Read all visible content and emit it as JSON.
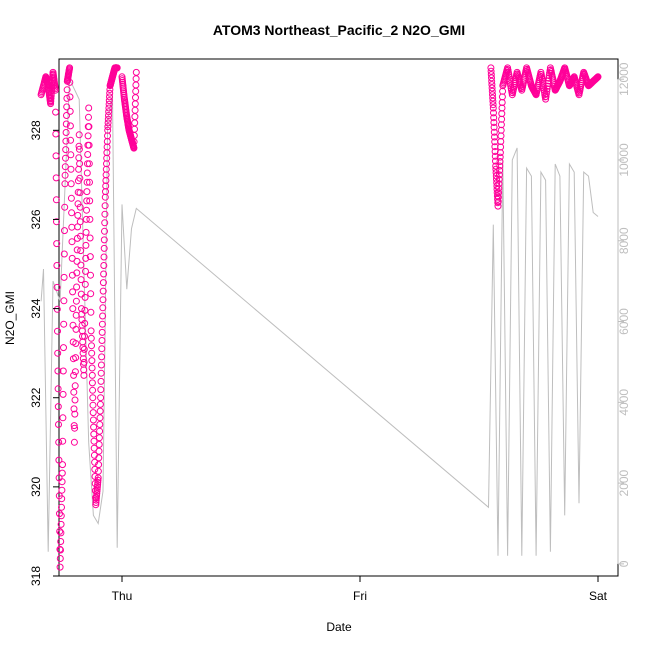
{
  "chart_data": {
    "type": "scatter",
    "title": "ATOM3 Northeast_Pacific_2 N2O_GMI",
    "xlabel": "Date",
    "ylabel": "N2O_GMI",
    "x_ticks": [
      "Thu",
      "Fri",
      "Sat"
    ],
    "xlim": [
      -0.17,
      1.02
    ],
    "ylim": [
      318,
      329.6
    ],
    "y_ticks": [
      318,
      320,
      322,
      324,
      326,
      328
    ],
    "y2lim": [
      -300,
      12500
    ],
    "y2_ticks": [
      0,
      2000,
      4000,
      6000,
      8000,
      10000,
      12000
    ],
    "grid": false,
    "series": [
      {
        "kind": "points",
        "color": "#ff0099",
        "segments": [
          {
            "x": [
              -0.17,
              -0.16,
              -0.155,
              -0.15,
              -0.145,
              -0.14,
              -0.135,
              -0.13,
              -0.125,
              -0.12,
              -0.115,
              -0.11,
              -0.105,
              -0.1,
              -0.095,
              -0.09,
              -0.085,
              -0.08,
              -0.075,
              -0.07,
              -0.065,
              -0.06,
              -0.055,
              -0.05,
              -0.045,
              -0.04,
              -0.035,
              -0.03,
              -0.025,
              -0.02,
              -0.015,
              -0.01
            ],
            "y": [
              328.8,
              329.2,
              329.0,
              328.6,
              329.3,
              328.9,
              323.0,
              318.2,
              320.5,
              326.8,
              329.1,
              329.4,
              325.5,
              321.0,
              324.8,
              327.9,
              324.0,
              322.5,
              326.0,
              328.5,
              323.5,
              321.5,
              319.6,
              320.2,
              322.0,
              324.2,
              326.5,
              328.0,
              329.0,
              329.2,
              329.4,
              329.4
            ]
          }
        ]
      },
      {
        "kind": "points",
        "color": "#ff0099",
        "segments": [
          {
            "x": [
              0.0,
              0.005,
              0.01,
              0.015,
              0.02,
              0.025,
              0.03
            ],
            "y": [
              329.2,
              328.7,
              328.3,
              328.0,
              327.8,
              327.6,
              329.3
            ]
          }
        ]
      },
      {
        "kind": "points",
        "color": "#ff0099",
        "segments": [
          {
            "x": [
              0.775,
              0.78,
              0.785,
              0.79,
              0.795,
              0.8,
              0.81,
              0.82,
              0.83,
              0.84,
              0.85,
              0.86,
              0.87,
              0.88,
              0.89,
              0.9,
              0.91,
              0.92,
              0.93,
              0.94,
              0.95,
              0.96,
              0.97,
              0.98,
              0.99,
              1.0
            ],
            "y": [
              329.4,
              328.5,
              327.2,
              326.3,
              327.5,
              329.0,
              329.4,
              328.8,
              329.3,
              328.9,
              329.4,
              329.0,
              328.8,
              329.3,
              328.7,
              329.4,
              328.9,
              329.1,
              329.4,
              329.0,
              329.2,
              328.8,
              329.3,
              329.0,
              329.1,
              329.2
            ]
          }
        ]
      },
      {
        "kind": "line",
        "axis": "right",
        "color": "#bebebe",
        "segments": [
          {
            "x": [
              -0.17,
              -0.165,
              -0.155,
              -0.145,
              -0.13,
              -0.11,
              -0.09,
              -0.07,
              -0.06,
              -0.05,
              -0.04,
              -0.03,
              -0.02,
              -0.01,
              0.0,
              0.01,
              0.02,
              0.03,
              0.77,
              0.78,
              0.79,
              0.8,
              0.81,
              0.82,
              0.83,
              0.84,
              0.85,
              0.86,
              0.87,
              0.88,
              0.89,
              0.9,
              0.91,
              0.92,
              0.93,
              0.94,
              0.95,
              0.96,
              0.97,
              0.98,
              0.99,
              1.0
            ],
            "y": [
              6500,
              7300,
              300,
              7000,
              6500,
              12000,
              11500,
              3000,
              1200,
              1000,
              1800,
              11000,
              11600,
              400,
              8900,
              6800,
              8300,
              8800,
              1400,
              8400,
              200,
              10000,
              200,
              10000,
              10300,
              200,
              9800,
              9600,
              200,
              9700,
              9500,
              300,
              9900,
              9600,
              1200,
              9900,
              9700,
              1500,
              9700,
              9600,
              8700,
              8600
            ]
          }
        ]
      }
    ]
  }
}
